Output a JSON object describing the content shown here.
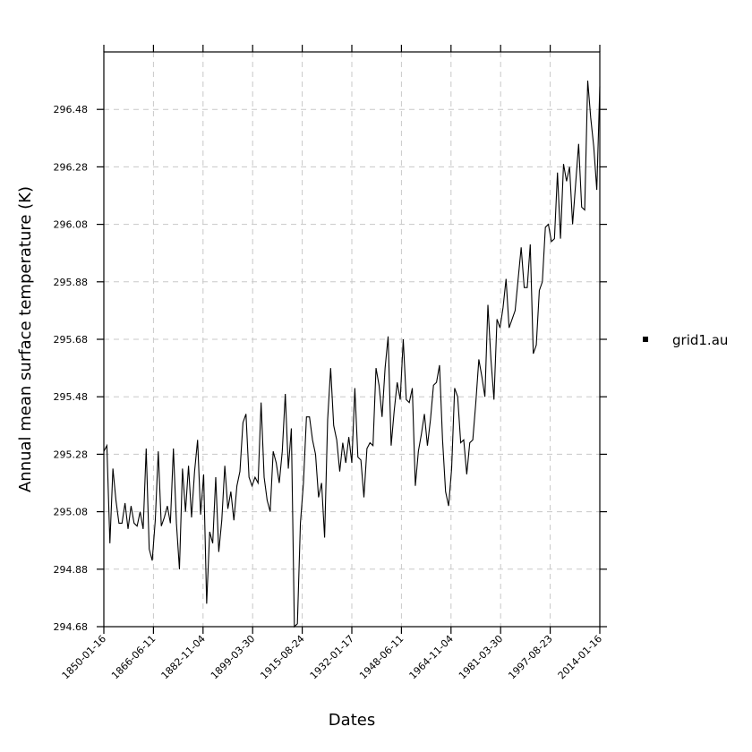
{
  "chart_data": {
    "type": "line",
    "title": "",
    "xlabel": "Dates",
    "ylabel": "Annual mean surface temperature (K)",
    "x_start_year": 1850,
    "x_end_year": 2014,
    "xlim": [
      "1850-01-16",
      "2014-01-16"
    ],
    "ylim": [
      294.68,
      296.68
    ],
    "x_ticks": [
      "1850-01-16",
      "1866-06-11",
      "1882-11-04",
      "1899-03-30",
      "1915-08-24",
      "1932-01-17",
      "1948-06-11",
      "1964-11-04",
      "1981-03-30",
      "1997-08-23",
      "2014-01-16"
    ],
    "y_ticks": [
      "294.68",
      "294.88",
      "295.08",
      "295.28",
      "295.48",
      "295.68",
      "295.88",
      "296.08",
      "296.28",
      "296.48"
    ],
    "grid": true,
    "legend_position": "right",
    "series": [
      {
        "name": "grid1.au",
        "color": "#000000",
        "values": [
          295.29,
          295.31,
          294.97,
          295.23,
          295.12,
          295.04,
          295.04,
          295.11,
          295.02,
          295.1,
          295.04,
          295.03,
          295.08,
          295.02,
          295.3,
          294.95,
          294.91,
          295.05,
          295.29,
          295.03,
          295.06,
          295.1,
          295.04,
          295.3,
          295.04,
          294.88,
          295.23,
          295.08,
          295.24,
          295.06,
          295.22,
          295.33,
          295.07,
          295.21,
          294.76,
          295.01,
          294.97,
          295.2,
          294.94,
          295.05,
          295.24,
          295.09,
          295.15,
          295.05,
          295.17,
          295.22,
          295.39,
          295.42,
          295.2,
          295.17,
          295.2,
          295.18,
          295.46,
          295.2,
          295.12,
          295.08,
          295.29,
          295.25,
          295.18,
          295.29,
          295.49,
          295.23,
          295.37,
          294.68,
          294.69,
          295.04,
          295.18,
          295.41,
          295.41,
          295.33,
          295.28,
          295.13,
          295.18,
          294.99,
          295.4,
          295.58,
          295.38,
          295.33,
          295.22,
          295.32,
          295.25,
          295.34,
          295.25,
          295.51,
          295.27,
          295.26,
          295.13,
          295.3,
          295.32,
          295.31,
          295.58,
          295.52,
          295.41,
          295.58,
          295.69,
          295.31,
          295.43,
          295.53,
          295.47,
          295.68,
          295.47,
          295.46,
          295.51,
          295.17,
          295.29,
          295.35,
          295.42,
          295.31,
          295.4,
          295.52,
          295.53,
          295.59,
          295.33,
          295.15,
          295.1,
          295.23,
          295.51,
          295.48,
          295.32,
          295.33,
          295.21,
          295.32,
          295.33,
          295.46,
          295.61,
          295.55,
          295.48,
          295.8,
          295.61,
          295.47,
          295.75,
          295.72,
          295.79,
          295.89,
          295.72,
          295.75,
          295.78,
          295.89,
          296.0,
          295.86,
          295.86,
          296.01,
          295.63,
          295.66,
          295.85,
          295.88,
          296.07,
          296.08,
          296.02,
          296.03,
          296.26,
          296.03,
          296.29,
          296.23,
          296.28,
          296.08,
          296.22,
          296.36,
          296.14,
          296.13,
          296.58,
          296.45,
          296.35,
          296.2,
          296.56
        ]
      }
    ]
  }
}
